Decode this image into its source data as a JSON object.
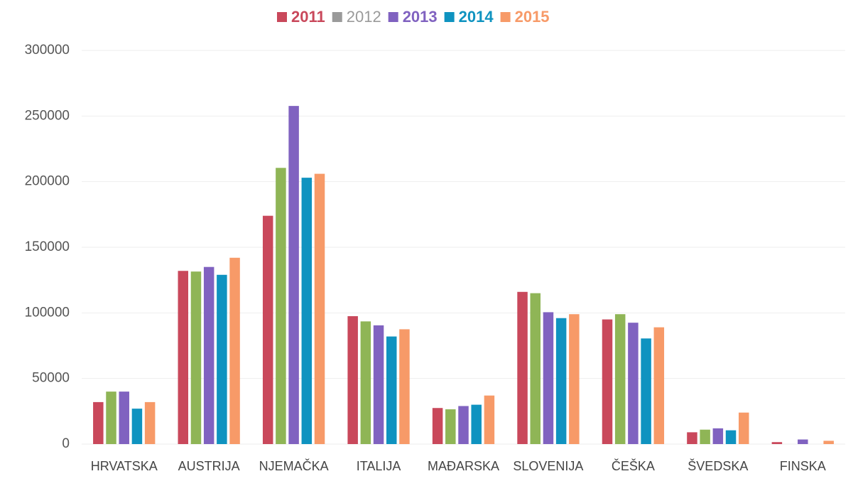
{
  "chart_data": {
    "type": "bar",
    "categories": [
      "HRVATSKA",
      "AUSTRIJA",
      "NJEMAČKA",
      "ITALIJA",
      "MAĐARSKA",
      "SLOVENIJA",
      "ČEŠKA",
      "ŠVEDSKA",
      "FINSKA"
    ],
    "series": [
      {
        "name": "2011",
        "color": "#c9485b",
        "legend_color": "#c9485b",
        "values": [
          32000,
          132000,
          174000,
          97500,
          27500,
          116000,
          95000,
          9000,
          1500
        ]
      },
      {
        "name": "2012",
        "color": "#8fb556",
        "legend_color": "#9a9a9a",
        "values": [
          40000,
          131500,
          210500,
          93500,
          26500,
          115000,
          99000,
          11000,
          0
        ]
      },
      {
        "name": "2013",
        "color": "#8062c0",
        "legend_color": "#8062c0",
        "values": [
          40000,
          135000,
          257700,
          90500,
          29000,
          100500,
          92500,
          12000,
          3500
        ]
      },
      {
        "name": "2014",
        "color": "#0f93c0",
        "legend_color": "#0f93c0",
        "values": [
          27000,
          129000,
          203000,
          82000,
          30000,
          96000,
          80500,
          10500,
          0
        ]
      },
      {
        "name": "2015",
        "color": "#f79a68",
        "legend_color": "#f79a68",
        "values": [
          32000,
          142000,
          206000,
          87500,
          37000,
          99000,
          89000,
          24000,
          2500
        ]
      }
    ],
    "ylim": [
      0,
      300000
    ],
    "yticks": [
      0,
      50000,
      100000,
      150000,
      200000,
      250000,
      300000
    ],
    "grid": true,
    "legend": "top"
  }
}
